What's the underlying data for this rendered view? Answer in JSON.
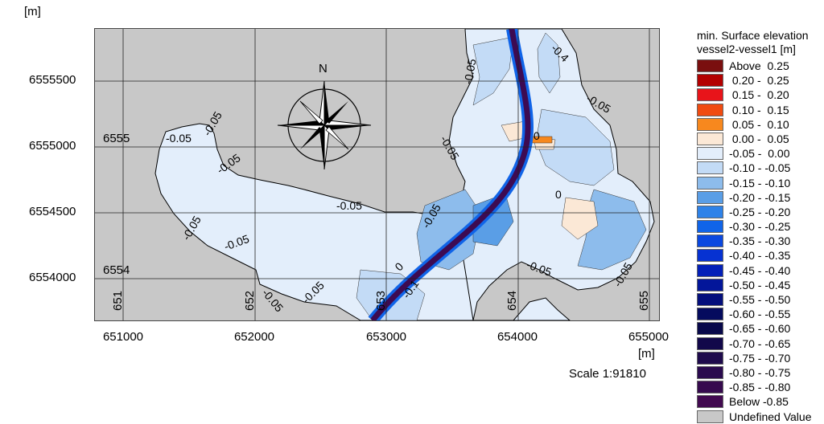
{
  "axes": {
    "y_unit": "[m]",
    "x_unit": "[m]",
    "y_ticks": [
      "6555500",
      "6555000",
      "6554500",
      "6554000"
    ],
    "x_ticks": [
      "651000",
      "652000",
      "653000",
      "654000",
      "655000"
    ]
  },
  "grid_labels": {
    "row_6555": "6555",
    "row_6554": "6554",
    "col_651": "651",
    "col_652": "652",
    "col_653": "653",
    "col_654": "654",
    "col_655": "655"
  },
  "north_arrow": {
    "label": "N"
  },
  "contour_labels": [
    "-0.05",
    "0",
    "-0.1",
    "-0.4"
  ],
  "scale_text": "Scale 1:91810",
  "legend": {
    "title_line1": "min. Surface elevation",
    "title_line2": "vessel2-vessel1 [m]",
    "items": [
      {
        "label": "Above  0.25",
        "color": "#7a0f0f"
      },
      {
        "label": " 0.20 -  0.25",
        "color": "#b30000"
      },
      {
        "label": " 0.15 -  0.20",
        "color": "#e8141a"
      },
      {
        "label": " 0.10 -  0.15",
        "color": "#f04b10"
      },
      {
        "label": " 0.05 -  0.10",
        "color": "#f7881e"
      },
      {
        "label": " 0.00 -  0.05",
        "color": "#fbe8d6"
      },
      {
        "label": "-0.05 -  0.00",
        "color": "#e3eefb"
      },
      {
        "label": "-0.10 - -0.05",
        "color": "#c3dbf6"
      },
      {
        "label": "-0.15 - -0.10",
        "color": "#8dbcec"
      },
      {
        "label": "-0.20 - -0.15",
        "color": "#5a9ee6"
      },
      {
        "label": "-0.25 - -0.20",
        "color": "#2e82e8"
      },
      {
        "label": "-0.30 - -0.25",
        "color": "#1064e8"
      },
      {
        "label": "-0.35 - -0.30",
        "color": "#0a48e0"
      },
      {
        "label": "-0.40 - -0.35",
        "color": "#0632d2"
      },
      {
        "label": "-0.45 - -0.40",
        "color": "#0420b8"
      },
      {
        "label": "-0.50 - -0.45",
        "color": "#03169a"
      },
      {
        "label": "-0.55 - -0.50",
        "color": "#040f7c"
      },
      {
        "label": "-0.60 - -0.55",
        "color": "#050b5e"
      },
      {
        "label": "-0.65 - -0.60",
        "color": "#08084a"
      },
      {
        "label": "-0.70 - -0.65",
        "color": "#12084a"
      },
      {
        "label": "-0.75 - -0.70",
        "color": "#1e0a4c"
      },
      {
        "label": "-0.80 - -0.75",
        "color": "#2a0a4e"
      },
      {
        "label": "-0.85 - -0.80",
        "color": "#360a4e"
      },
      {
        "label": "Below -0.85",
        "color": "#420a50"
      },
      {
        "label": "Undefined Value",
        "color": "#c8c8c8"
      }
    ]
  },
  "colors": {
    "land": "#c8c8c8",
    "water_light": "#e3eefb",
    "channel": "#3d0b52"
  }
}
